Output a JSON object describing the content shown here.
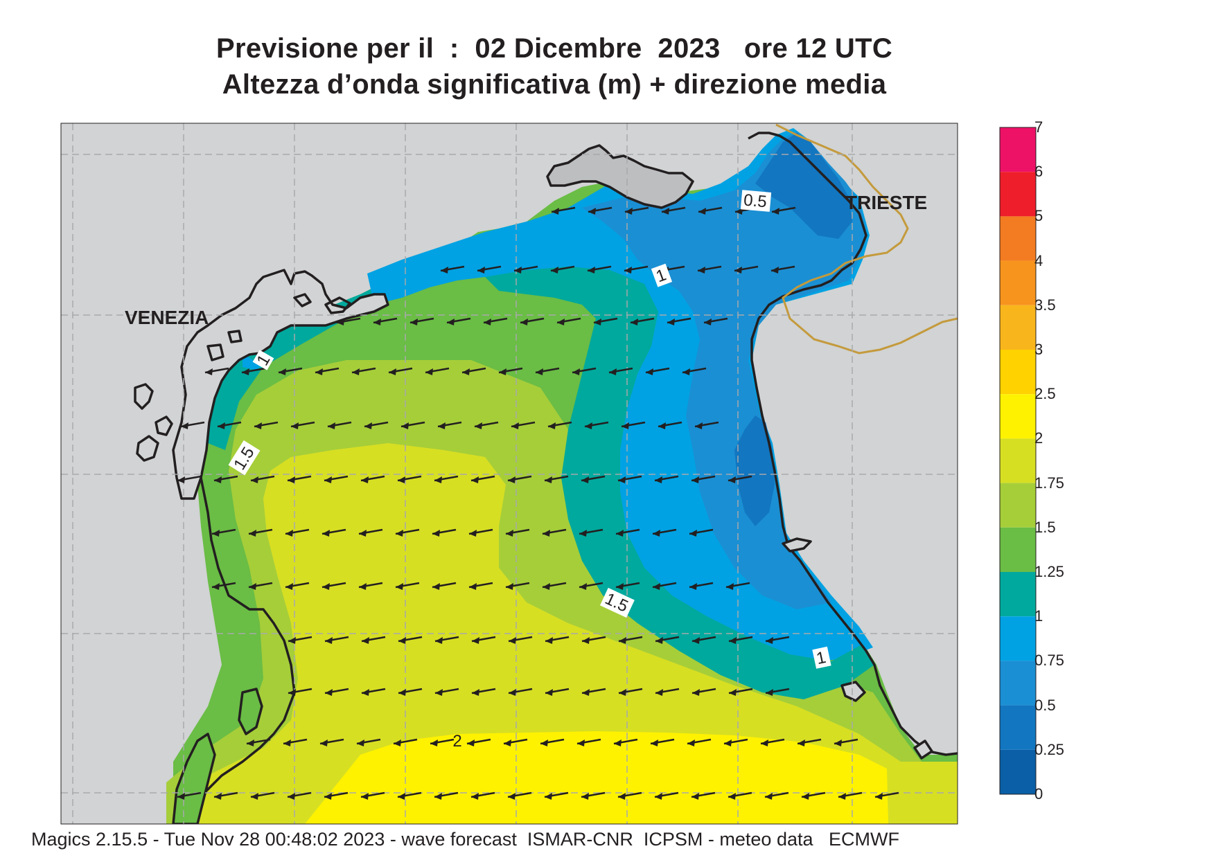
{
  "title": {
    "line1": "Previsione per il  :  02 Dicembre  2023   ore 12 UTC",
    "line2": "Altezza d’onda significativa (m) + direzione media"
  },
  "cities": [
    "VENEZIA",
    "TRIESTE"
  ],
  "contour_labels": [
    "0.5",
    "1",
    "1",
    "1.5",
    "1.5",
    "1",
    "2"
  ],
  "legend": {
    "levels": [
      "7",
      "6",
      "5",
      "4",
      "3.5",
      "3",
      "2.5",
      "2",
      "1.75",
      "1.5",
      "1.25",
      "1",
      "0.75",
      "0.5",
      "0.25",
      "0"
    ],
    "colors": [
      "#ee1267",
      "#ee1e2b",
      "#f37b21",
      "#f7941d",
      "#f9b51c",
      "#ffd200",
      "#fff200",
      "#d7df23",
      "#a6ce39",
      "#6abd45",
      "#00a99d",
      "#00a2e3",
      "#1b8fd3",
      "#1276c0",
      "#0a5fa7"
    ]
  },
  "wave_direction": "WSW",
  "colors": {
    "land": "#d1d3d4",
    "coastline": "#231f20",
    "border": "#c49a3c",
    "arrow": "#231f20"
  },
  "footer": "Magics 2.15.5 - Tue Nov 28 00:48:02 2023 - wave forecast  ISMAR-CNR  ICPSM - meteo data   ECMWF"
}
